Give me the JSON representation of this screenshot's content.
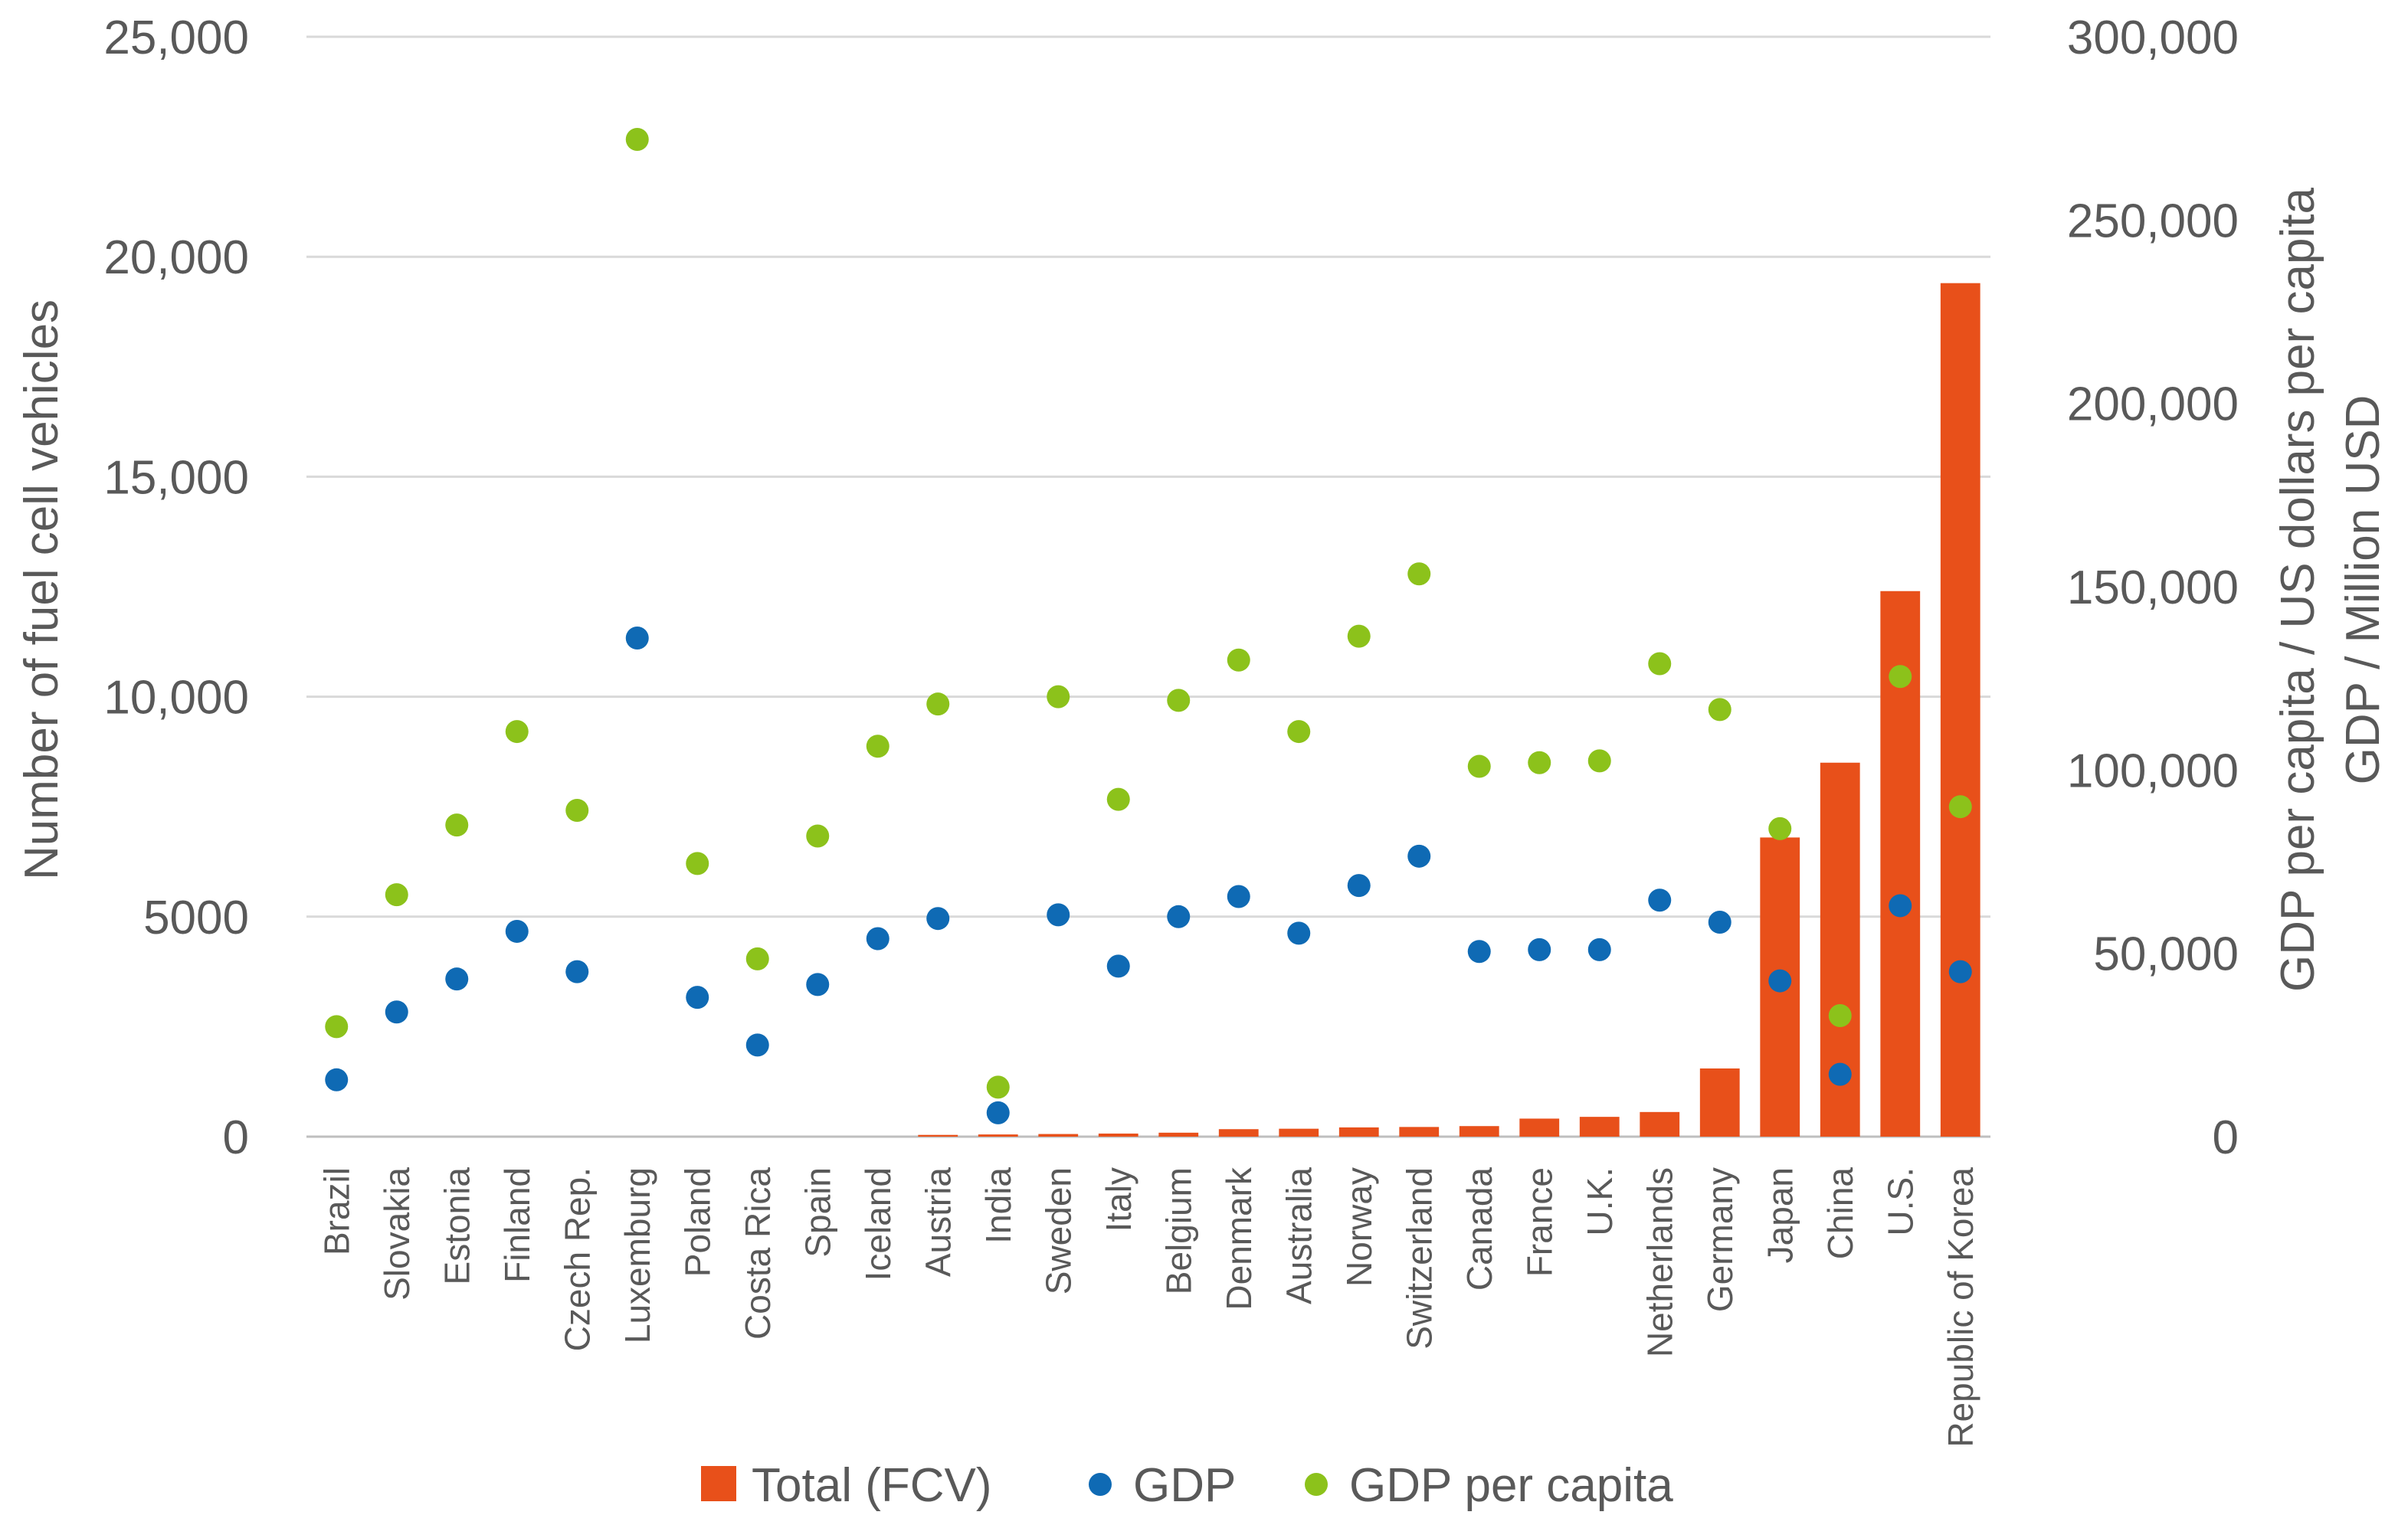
{
  "chart_data": {
    "type": "bar",
    "categories": [
      "Brazil",
      "Slovakia",
      "Estonia",
      "Finland",
      "Czech Rep.",
      "Luxemburg",
      "Poland",
      "Costa Rica",
      "Spain",
      "Iceland",
      "Austria",
      "India",
      "Sweden",
      "Italy",
      "Belgium",
      "Denmark",
      "Australia",
      "Norway",
      "Switzerland",
      "Canada",
      "France",
      "U.K.",
      "Netherlands",
      "Germany",
      "Japan",
      "China",
      "U.S.",
      "Republic of Korea"
    ],
    "series": [
      {
        "name": "Total (FCV)",
        "kind": "bar",
        "axis": "left",
        "color": "#E8501A",
        "values": [
          0,
          0,
          0,
          0,
          0,
          0,
          0,
          0,
          0,
          0,
          40,
          50,
          60,
          70,
          90,
          170,
          180,
          210,
          220,
          240,
          410,
          450,
          560,
          1550,
          6800,
          8500,
          12400,
          19400
        ]
      },
      {
        "name": "GDP",
        "kind": "scatter",
        "axis": "right",
        "color": "#0F6AB4",
        "values": [
          15500,
          34000,
          43000,
          56000,
          45000,
          136000,
          38000,
          25000,
          41500,
          54000,
          59500,
          6500,
          60500,
          46500,
          60000,
          65500,
          55500,
          68500,
          76500,
          50500,
          51000,
          51000,
          64500,
          58500,
          42500,
          17000,
          63000,
          45000
        ]
      },
      {
        "name": "GDP per capita",
        "kind": "scatter",
        "axis": "right",
        "color": "#8CC21B",
        "values": [
          30000,
          66000,
          85000,
          110500,
          89000,
          272000,
          74500,
          48500,
          82000,
          106500,
          118000,
          13500,
          120000,
          92000,
          119000,
          130000,
          110500,
          136500,
          153500,
          101000,
          102000,
          102500,
          129000,
          116500,
          84000,
          33000,
          125500,
          90000
        ]
      }
    ],
    "left_axis": {
      "title": "Number of fuel cell vehicles",
      "ylim": [
        0,
        25000
      ],
      "ticks": [
        0,
        5000,
        10000,
        15000,
        20000,
        25000
      ],
      "tick_labels": [
        "0",
        "5000",
        "10,000",
        "15,000",
        "20,000",
        "25,000"
      ]
    },
    "right_axis": {
      "title_line1": "GDP per capita / US dollars per capita",
      "title_line2": "GDP / Million USD",
      "ylim": [
        0,
        300000
      ],
      "ticks": [
        0,
        50000,
        100000,
        150000,
        200000,
        250000,
        300000
      ],
      "tick_labels": [
        "0",
        "50,000",
        "100,000",
        "150,000",
        "200,000",
        "250,000",
        "300,000"
      ]
    },
    "grid": true,
    "legend_position": "bottom",
    "legend": [
      {
        "label": "Total (FCV)",
        "marker": "square",
        "color": "#E8501A"
      },
      {
        "label": "GDP",
        "marker": "circle",
        "color": "#0F6AB4"
      },
      {
        "label": "GDP per capita",
        "marker": "circle",
        "color": "#8CC21B"
      }
    ]
  }
}
